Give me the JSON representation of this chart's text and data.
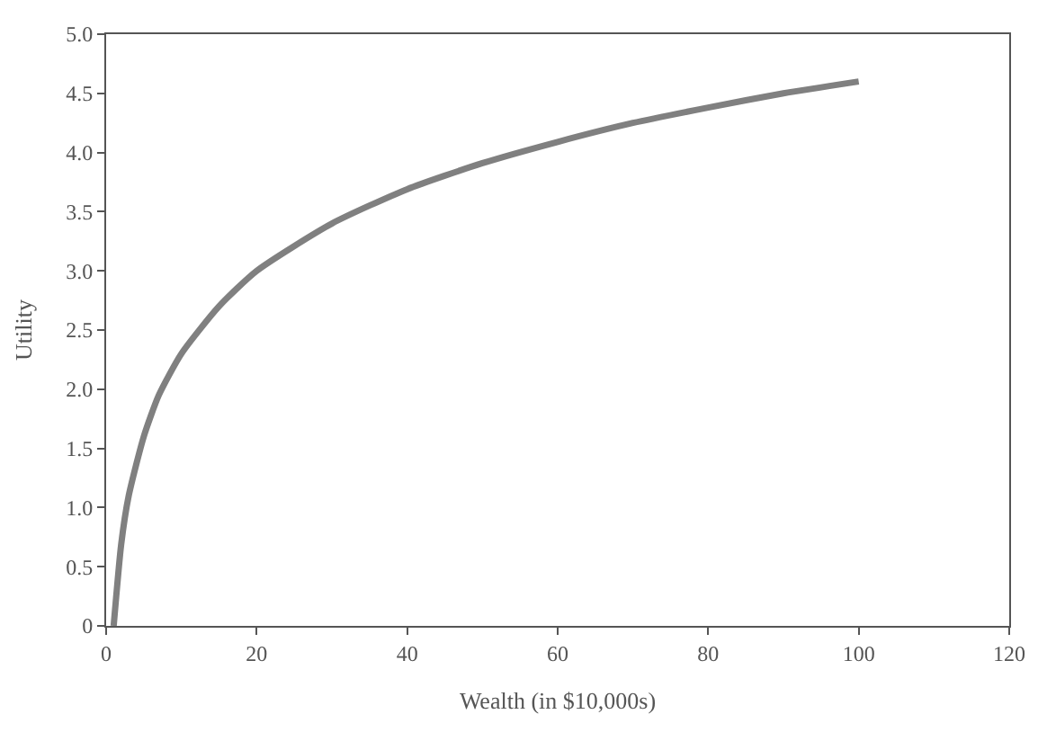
{
  "chart_data": {
    "type": "line",
    "xlabel": "Wealth (in $10,000s)",
    "ylabel": "Utility",
    "x": [
      1,
      2,
      3,
      5,
      7,
      10,
      15,
      20,
      30,
      40,
      50,
      60,
      70,
      80,
      90,
      100
    ],
    "series": [
      {
        "color": "#808080",
        "values": [
          0,
          0.69,
          1.1,
          1.6,
          1.95,
          2.3,
          2.7,
          3.0,
          3.4,
          3.69,
          3.91,
          4.09,
          4.25,
          4.38,
          4.5,
          4.6
        ]
      }
    ],
    "xlim": [
      0,
      120
    ],
    "xticks": [
      0,
      20,
      40,
      60,
      80,
      100,
      120
    ],
    "ylim": [
      0,
      5
    ],
    "yticks": [
      0,
      {
        "value": 0.5,
        "label": "0.5"
      },
      {
        "value": 1,
        "label": "1.0"
      },
      {
        "value": 1.5,
        "label": "1.5"
      },
      {
        "value": 2,
        "label": "2.0"
      },
      {
        "value": 2.5,
        "label": "2.5"
      },
      {
        "value": 3,
        "label": "3.0"
      },
      {
        "value": 3.5,
        "label": "3.5"
      },
      {
        "value": 4,
        "label": "4.0"
      },
      {
        "value": 4.5,
        "label": "4.5"
      },
      {
        "value": 5,
        "label": "5.0"
      }
    ],
    "marker": "none",
    "line_style": "solid"
  }
}
